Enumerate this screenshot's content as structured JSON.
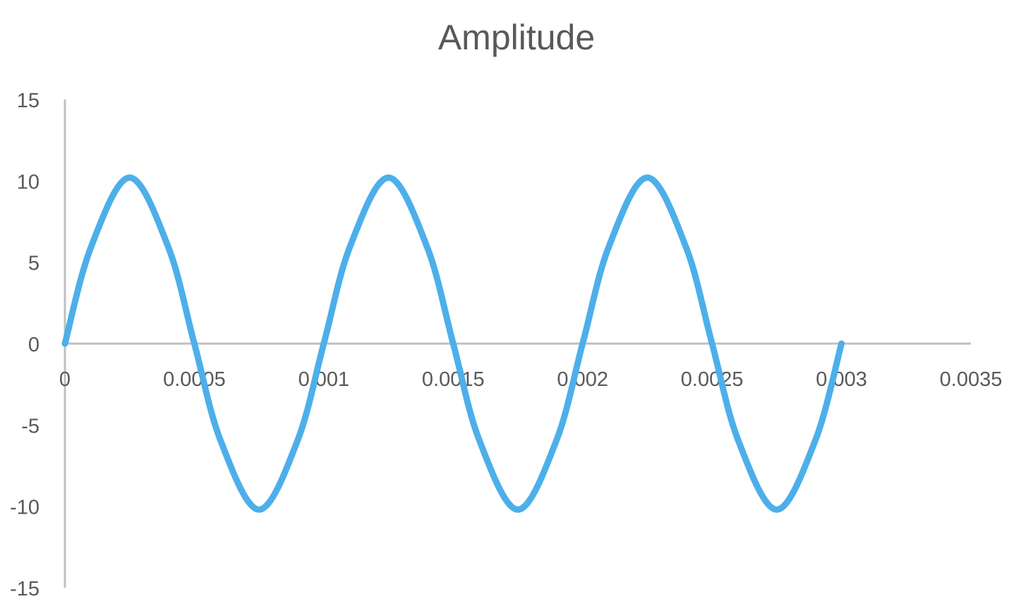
{
  "chart_data": {
    "type": "line",
    "title": "Amplitude",
    "xlabel": "",
    "ylabel": "",
    "xlim": [
      0,
      0.0035
    ],
    "ylim": [
      -15,
      15
    ],
    "x_ticks": [
      "0",
      "0.0005",
      "0.001",
      "0.0015",
      "0.002",
      "0.0025",
      "0.003",
      "0.0035"
    ],
    "y_ticks": [
      "15",
      "10",
      "5",
      "0",
      "-5",
      "-10",
      "-15"
    ],
    "grid": false,
    "legend": "none",
    "series": [
      {
        "color": "#4DAFEA",
        "x": [
          0,
          0.0001,
          0.00025,
          0.0004,
          0.0005,
          0.0006,
          0.00075,
          0.0009,
          0.001,
          0.0011,
          0.00125,
          0.0014,
          0.0015,
          0.0016,
          0.00175,
          0.0019,
          0.002,
          0.0021,
          0.00225,
          0.0024,
          0.0025,
          0.0026,
          0.00275,
          0.0029,
          0.003
        ],
        "y": [
          0,
          5.9,
          10.2,
          5.9,
          0,
          -5.9,
          -10.2,
          -5.9,
          0,
          5.9,
          10.2,
          5.9,
          0,
          -5.9,
          -10.2,
          -5.9,
          0,
          5.9,
          10.2,
          5.9,
          0,
          -5.9,
          -10.2,
          -5.9,
          0
        ]
      }
    ]
  },
  "colors": {
    "axis": "#BFBFBF",
    "text": "#595959",
    "line": "#4DAFEA"
  }
}
